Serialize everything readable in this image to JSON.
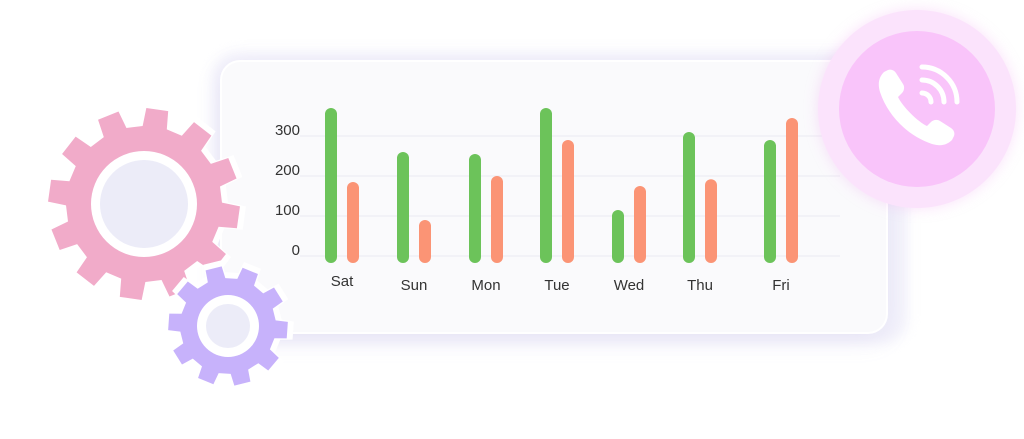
{
  "chart_data": {
    "type": "bar",
    "categories": [
      "Sat",
      "Sun",
      "Mon",
      "Tue",
      "Wed",
      "Thu",
      "Fri"
    ],
    "series": [
      {
        "values": [
          370,
          260,
          255,
          370,
          115,
          310,
          290
        ],
        "color": "#6cc35a"
      },
      {
        "values": [
          185,
          90,
          200,
          290,
          175,
          192,
          345
        ],
        "color": "#fb9475"
      }
    ],
    "yticks": [
      0,
      100,
      200,
      300
    ],
    "ylim": [
      0,
      400
    ],
    "grid": true,
    "title": "",
    "xlabel": "",
    "ylabel": ""
  },
  "decor": {
    "gear_large_color": "#f1abc9",
    "gear_small_color": "#c7b2fb",
    "phone_icon": "phone-ringing-icon",
    "phone_color": "#f9c4fa"
  }
}
